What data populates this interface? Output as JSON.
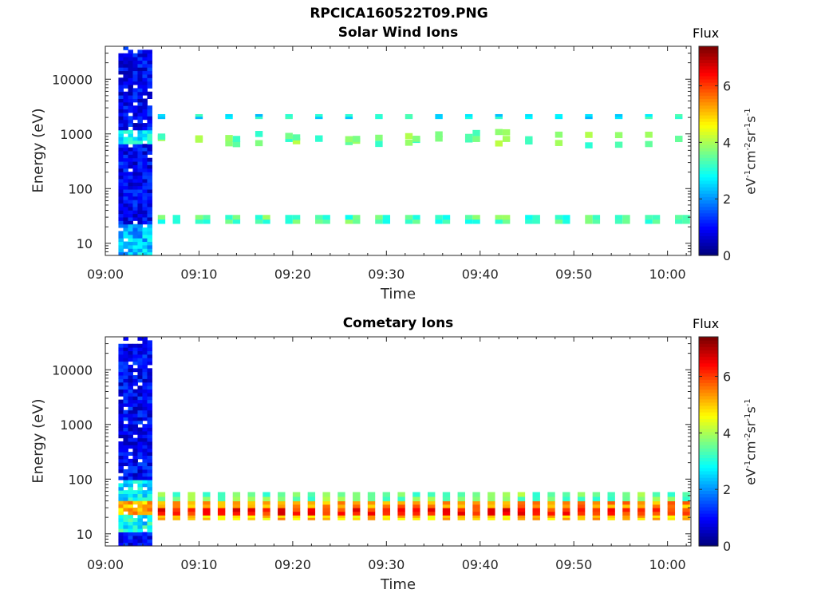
{
  "figure_title": "RPCICA160522T09.PNG",
  "colorbar": {
    "label": "Flux",
    "unit_label": "eV-1cm-2sr-1s-1",
    "range": [
      0,
      7.4
    ],
    "ticks": [
      "0",
      "2",
      "4",
      "6"
    ],
    "colormap": "jet"
  },
  "chart_data": [
    {
      "type": "heatmap",
      "title": "Solar Wind Ions",
      "xlabel": "Time",
      "ylabel": "Energy (eV)",
      "y_scale": "log",
      "ylim": [
        6,
        40000
      ],
      "xlim_minutes": [
        0,
        62.5
      ],
      "x_tick_labels": [
        "09:00",
        "09:10",
        "09:20",
        "09:30",
        "09:40",
        "09:50",
        "10:00"
      ],
      "y_tick_labels": [
        "10",
        "100",
        "1000",
        "10000"
      ],
      "dense_interval_minutes": [
        1.4,
        4.5
      ],
      "dense_interval_flux_range": [
        0.3,
        1.5
      ],
      "dense_interval_highlight": {
        "energy_range": [
          650,
          1100
        ],
        "flux": 3.2
      },
      "measurement_times_minutes": [
        5.6,
        7.2,
        9.6,
        10.4,
        12.8,
        13.6,
        16.0,
        16.8,
        19.2,
        20.0,
        22.4,
        23.2,
        25.6,
        26.4,
        28.8,
        29.6,
        32.0,
        32.8,
        35.2,
        36.0,
        38.4,
        39.2,
        41.6,
        42.4,
        44.8,
        45.6,
        48.0,
        48.8,
        51.2,
        52.0,
        54.4,
        55.2,
        57.6,
        58.4,
        60.8,
        61.6
      ],
      "bands": [
        {
          "energy_range": [
            23,
            33
          ],
          "flux": 3.4
        },
        {
          "energy_range": [
            650,
            1050
          ],
          "flux": 3.6
        },
        {
          "energy_range": [
            1900,
            2300
          ],
          "flux": 2.8
        }
      ]
    },
    {
      "type": "heatmap",
      "title": "Cometary Ions",
      "xlabel": "Time",
      "ylabel": "Energy (eV)",
      "y_scale": "log",
      "ylim": [
        6,
        40000
      ],
      "xlim_minutes": [
        0,
        62.5
      ],
      "x_tick_labels": [
        "09:00",
        "09:10",
        "09:20",
        "09:30",
        "09:40",
        "09:50",
        "10:00"
      ],
      "y_tick_labels": [
        "10",
        "100",
        "1000",
        "10000"
      ],
      "dense_interval_minutes": [
        1.4,
        4.5
      ],
      "dense_interval_flux_range": [
        0.3,
        1.5
      ],
      "dense_interval_highlight": {
        "energy_range": [
          20,
          40
        ],
        "flux": 5.8
      },
      "measurement_times_minutes": [
        5.6,
        7.2,
        8.8,
        10.4,
        12.0,
        13.6,
        15.2,
        16.8,
        18.4,
        20.0,
        21.6,
        23.2,
        24.8,
        26.4,
        28.0,
        29.6,
        31.2,
        32.8,
        34.4,
        36.0,
        37.6,
        39.2,
        40.8,
        42.4,
        44.0,
        45.6,
        47.2,
        48.8,
        50.4,
        52.0,
        53.6,
        55.2,
        56.8,
        58.4,
        60.0,
        61.6
      ],
      "bands": [
        {
          "energy_range": [
            18,
            22
          ],
          "flux": 5.0
        },
        {
          "energy_range": [
            22,
            30
          ],
          "flux": 6.3
        },
        {
          "energy_range": [
            30,
            40
          ],
          "flux": 5.4
        },
        {
          "energy_range": [
            40,
            58
          ],
          "flux": 3.6
        }
      ]
    }
  ]
}
